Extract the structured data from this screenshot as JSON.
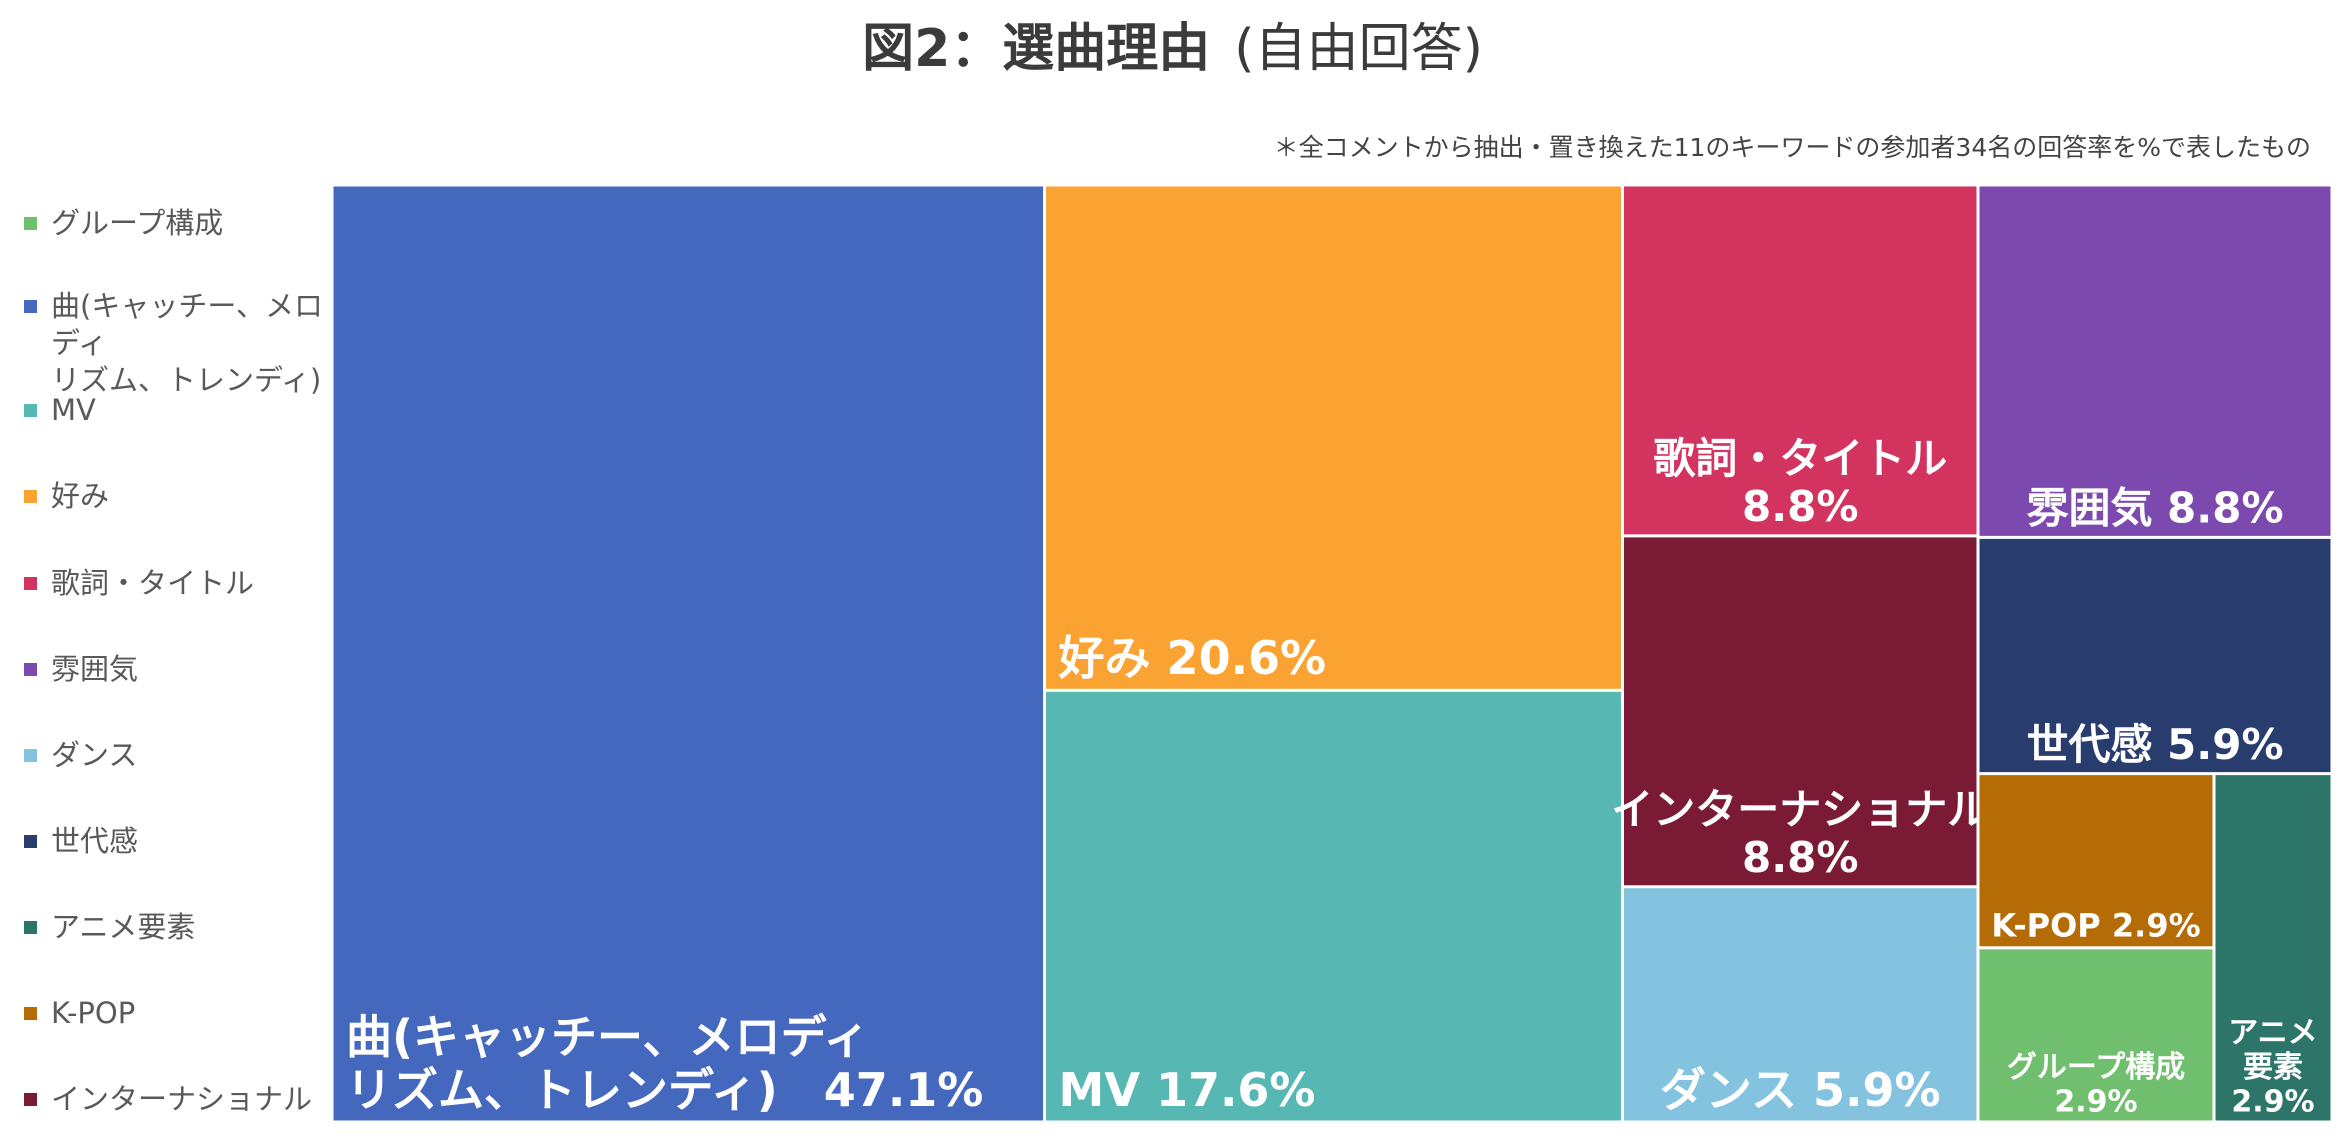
{
  "title": {
    "main": "図2：選曲理由",
    "sub": "(自由回答)"
  },
  "note": "＊全コメントから抽出・置き換えた11のキーワードの参加者34名の回答率を%で表したもの",
  "colors": {
    "song": "#4568BF",
    "preference": "#FBA332",
    "mv": "#57B8B3",
    "lyrics": "#D3335F",
    "atmosphere": "#7C4AAE",
    "international": "#7B1A35",
    "generation": "#283C6E",
    "dance": "#84C3DF",
    "kpop": "#B56C06",
    "group": "#70BF6E",
    "anime": "#2E7569"
  },
  "legend": [
    {
      "key": "group",
      "label": "グループ構成"
    },
    {
      "key": "song",
      "label": "曲(キャッチー、メロディ\nリズム、トレンディ)"
    },
    {
      "key": "mv",
      "label": "MV"
    },
    {
      "key": "preference",
      "label": "好み"
    },
    {
      "key": "lyrics",
      "label": "歌詞・タイトル"
    },
    {
      "key": "atmosphere",
      "label": "雰囲気"
    },
    {
      "key": "dance",
      "label": "ダンス"
    },
    {
      "key": "generation",
      "label": "世代感"
    },
    {
      "key": "anime",
      "label": "アニメ要素"
    },
    {
      "key": "kpop",
      "label": "K-POP"
    },
    {
      "key": "international",
      "label": "インターナショナル"
    }
  ],
  "chart_data": {
    "type": "treemap",
    "unit": "%",
    "items": [
      {
        "key": "song",
        "label": [
          "曲(キャッチー、メロディ",
          "リズム、トレンディ)　47.1%"
        ],
        "value": 47.1
      },
      {
        "key": "preference",
        "label": [
          "好み 20.6%"
        ],
        "value": 20.6
      },
      {
        "key": "mv",
        "label": [
          "MV 17.6%"
        ],
        "value": 17.6
      },
      {
        "key": "lyrics",
        "label": [
          "歌詞・タイトル",
          "8.8%"
        ],
        "value": 8.8
      },
      {
        "key": "international",
        "label": [
          "インターナショナル",
          "8.8%"
        ],
        "value": 8.8
      },
      {
        "key": "dance",
        "label": [
          "ダンス 5.9%"
        ],
        "value": 5.9
      },
      {
        "key": "atmosphere",
        "label": [
          "雰囲気 8.8%"
        ],
        "value": 8.8
      },
      {
        "key": "generation",
        "label": [
          "世代感 5.9%"
        ],
        "value": 5.9
      },
      {
        "key": "kpop",
        "label": [
          "K-POP 2.9%"
        ],
        "value": 2.9
      },
      {
        "key": "group",
        "label": [
          "グループ構成",
          "2.9%"
        ],
        "value": 2.9
      },
      {
        "key": "anime",
        "label": [
          "アニメ",
          "要素",
          "2.9%"
        ],
        "value": 2.9
      }
    ]
  }
}
